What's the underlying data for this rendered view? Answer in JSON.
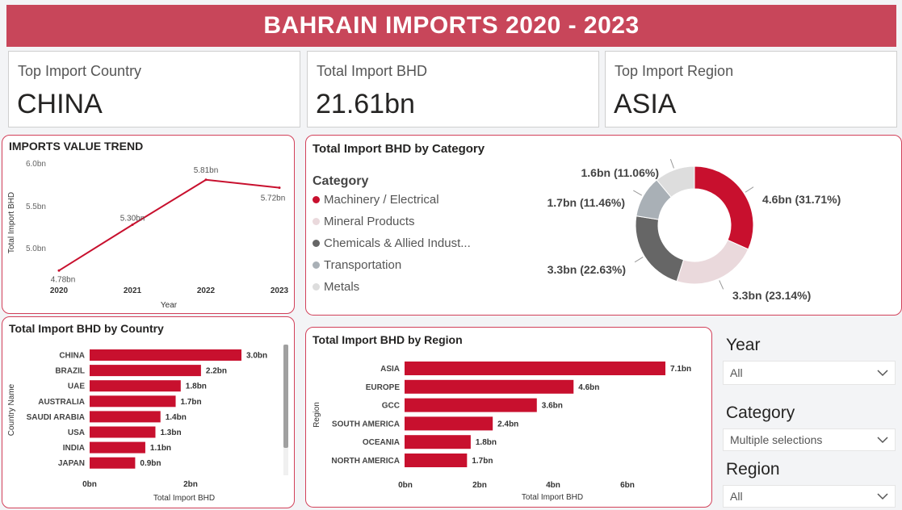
{
  "header": {
    "title": "BAHRAIN IMPORTS 2020 - 2023"
  },
  "kpis": [
    {
      "label": "Top Import Country",
      "value": "CHINA"
    },
    {
      "label": "Total Import BHD",
      "value": "21.61bn"
    },
    {
      "label": "Top Import Region",
      "value": "ASIA"
    }
  ],
  "colors": {
    "accent": "#c8102e",
    "banner": "#c8465a",
    "border": "#d2415a"
  },
  "trend": {
    "title": "IMPORTS VALUE TREND",
    "xlabel": "Year",
    "ylabel": "Total Import BHD",
    "yticks": [
      "6.0bn",
      "5.5bn",
      "5.0bn"
    ],
    "xticks": [
      "2020",
      "2021",
      "2022",
      "2023"
    ]
  },
  "category": {
    "title": "Total Import BHD by Category",
    "legend_title": "Category",
    "items": [
      {
        "label": "Machinery / Electrical",
        "color": "#c8102e"
      },
      {
        "label": "Mineral Products",
        "color": "#ead9dc"
      },
      {
        "label": "Chemicals & Allied Indust...",
        "color": "#666666"
      },
      {
        "label": "Transportation",
        "color": "#a9b0b6"
      },
      {
        "label": "Metals",
        "color": "#dddddd"
      }
    ]
  },
  "country": {
    "title": "Total Import BHD by Country",
    "ylabel": "Country Name",
    "xlabel": "Total Import BHD",
    "xticks": [
      "0bn",
      "2bn"
    ]
  },
  "region": {
    "title": "Total Import BHD by Region",
    "ylabel": "Region",
    "xlabel": "Total Import BHD",
    "xticks": [
      "0bn",
      "2bn",
      "4bn",
      "6bn"
    ]
  },
  "slicers": [
    {
      "title": "Year",
      "value": "All"
    },
    {
      "title": "Category",
      "value": "Multiple selections"
    },
    {
      "title": "Region",
      "value": "All"
    }
  ],
  "chart_data": [
    {
      "type": "line",
      "title": "IMPORTS VALUE TREND",
      "xlabel": "Year",
      "ylabel": "Total Import BHD",
      "x": [
        "2020",
        "2021",
        "2022",
        "2023"
      ],
      "values": [
        4.78,
        5.3,
        5.81,
        5.72
      ],
      "labels": [
        "4.78bn",
        "5.30bn",
        "5.81bn",
        "5.72bn"
      ],
      "ylim": [
        4.7,
        6.0
      ],
      "color": "#c8102e"
    },
    {
      "type": "pie",
      "title": "Total Import BHD by Category",
      "categories": [
        "Machinery / Electrical",
        "Mineral Products",
        "Chemicals & Allied Indust...",
        "Transportation",
        "Metals"
      ],
      "values": [
        31.71,
        23.14,
        22.63,
        11.46,
        11.06
      ],
      "labels": [
        "4.6bn (31.71%)",
        "3.3bn (23.14%)",
        "3.3bn (22.63%)",
        "1.7bn (11.46%)",
        "1.6bn (11.06%)"
      ],
      "colors": [
        "#c8102e",
        "#ead9dc",
        "#666666",
        "#a9b0b6",
        "#dddddd"
      ]
    },
    {
      "type": "bar",
      "title": "Total Import BHD by Country",
      "xlabel": "Total Import BHD",
      "ylabel": "Country Name",
      "categories": [
        "CHINA",
        "BRAZIL",
        "UAE",
        "AUSTRALIA",
        "SAUDI ARABIA",
        "USA",
        "INDIA",
        "JAPAN"
      ],
      "values": [
        3.0,
        2.2,
        1.8,
        1.7,
        1.4,
        1.3,
        1.1,
        0.9
      ],
      "labels": [
        "3.0bn",
        "2.2bn",
        "1.8bn",
        "1.7bn",
        "1.4bn",
        "1.3bn",
        "1.1bn",
        "0.9bn"
      ],
      "xlim": [
        0,
        3.0
      ]
    },
    {
      "type": "bar",
      "title": "Total Import BHD by Region",
      "xlabel": "Total Import BHD",
      "ylabel": "Region",
      "categories": [
        "ASIA",
        "EUROPE",
        "GCC",
        "SOUTH AMERICA",
        "OCEANIA",
        "NORTH AMERICA"
      ],
      "values": [
        7.1,
        4.6,
        3.6,
        2.4,
        1.8,
        1.7
      ],
      "labels": [
        "7.1bn",
        "4.6bn",
        "3.6bn",
        "2.4bn",
        "1.8bn",
        "1.7bn"
      ],
      "xlim": [
        0,
        7.1
      ]
    }
  ]
}
